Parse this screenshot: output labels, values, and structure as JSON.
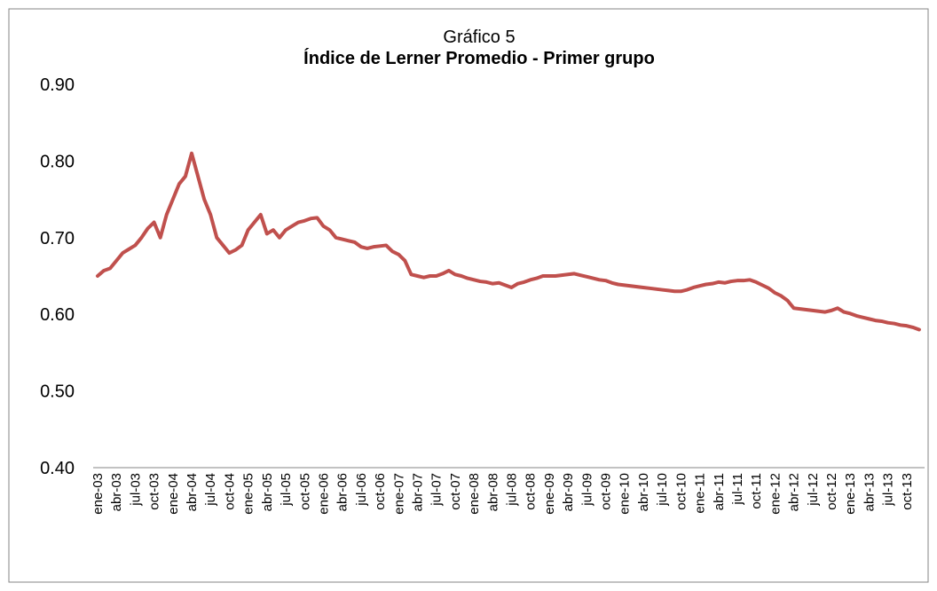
{
  "chart_data": {
    "type": "line",
    "title": "Gráfico 5",
    "subtitle": "Índice de Lerner Promedio - Primer grupo",
    "categories": [
      "ene-03",
      null,
      null,
      "abr-03",
      null,
      null,
      "jul-03",
      null,
      null,
      "oct-03",
      null,
      null,
      "ene-04",
      null,
      null,
      "abr-04",
      null,
      null,
      "jul-04",
      null,
      null,
      "oct-04",
      null,
      null,
      "ene-05",
      null,
      null,
      "abr-05",
      null,
      null,
      "jul-05",
      null,
      null,
      "oct-05",
      null,
      null,
      "ene-06",
      null,
      null,
      "abr-06",
      null,
      null,
      "jul-06",
      null,
      null,
      "oct-06",
      null,
      null,
      "ene-07",
      null,
      null,
      "abr-07",
      null,
      null,
      "jul-07",
      null,
      null,
      "oct-07",
      null,
      null,
      "ene-08",
      null,
      null,
      "abr-08",
      null,
      null,
      "jul-08",
      null,
      null,
      "oct-08",
      null,
      null,
      "ene-09",
      null,
      null,
      "abr-09",
      null,
      null,
      "jul-09",
      null,
      null,
      "oct-09",
      null,
      null,
      "ene-10",
      null,
      null,
      "abr-10",
      null,
      null,
      "jul-10",
      null,
      null,
      "oct-10",
      null,
      null,
      "ene-11",
      null,
      null,
      "abr-11",
      null,
      null,
      "jul-11",
      null,
      null,
      "oct-11",
      null,
      null,
      "ene-12",
      null,
      null,
      "abr-12",
      null,
      null,
      "jul-12",
      null,
      null,
      "oct-12",
      null,
      null,
      "ene-13",
      null,
      null,
      "abr-13",
      null,
      null,
      "jul-13",
      null,
      null,
      "oct-13",
      null,
      null
    ],
    "values": [
      0.65,
      0.657,
      0.66,
      0.67,
      0.68,
      0.685,
      0.69,
      0.7,
      0.712,
      0.72,
      0.7,
      0.73,
      0.75,
      0.77,
      0.78,
      0.81,
      0.78,
      0.75,
      0.73,
      0.7,
      0.69,
      0.68,
      0.684,
      0.69,
      0.71,
      0.72,
      0.73,
      0.705,
      0.71,
      0.7,
      0.71,
      0.715,
      0.72,
      0.722,
      0.725,
      0.726,
      0.715,
      0.71,
      0.7,
      0.698,
      0.696,
      0.694,
      0.688,
      0.686,
      0.688,
      0.689,
      0.69,
      0.682,
      0.678,
      0.67,
      0.652,
      0.65,
      0.648,
      0.65,
      0.65,
      0.653,
      0.657,
      0.652,
      0.65,
      0.647,
      0.645,
      0.643,
      0.642,
      0.64,
      0.641,
      0.638,
      0.635,
      0.64,
      0.642,
      0.645,
      0.647,
      0.65,
      0.65,
      0.65,
      0.651,
      0.652,
      0.653,
      0.651,
      0.649,
      0.647,
      0.645,
      0.644,
      0.641,
      0.639,
      0.638,
      0.637,
      0.636,
      0.635,
      0.634,
      0.633,
      0.632,
      0.631,
      0.63,
      0.63,
      0.632,
      0.635,
      0.637,
      0.639,
      0.64,
      0.642,
      0.641,
      0.643,
      0.644,
      0.644,
      0.645,
      0.642,
      0.638,
      0.634,
      0.628,
      0.624,
      0.618,
      0.608,
      0.607,
      0.606,
      0.605,
      0.604,
      0.603,
      0.605,
      0.608,
      0.603,
      0.601,
      0.598,
      0.596,
      0.594,
      0.592,
      0.591,
      0.589,
      0.588,
      0.586,
      0.585,
      0.583,
      0.58
    ],
    "color": "#c0504d",
    "ylim": [
      0.4,
      0.9
    ],
    "yticks": [
      {
        "value": 0.4,
        "label": "0.40"
      },
      {
        "value": 0.5,
        "label": "0.50"
      },
      {
        "value": 0.6,
        "label": "0.60"
      },
      {
        "value": 0.7,
        "label": "0.70"
      },
      {
        "value": 0.8,
        "label": "0.80"
      },
      {
        "value": 0.9,
        "label": "0.90"
      }
    ],
    "grid": false
  }
}
